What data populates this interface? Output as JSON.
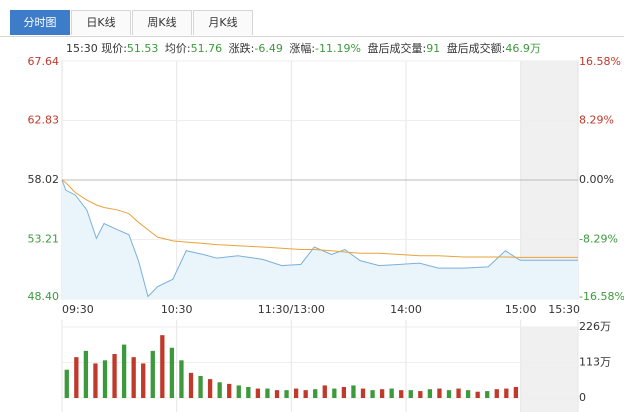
{
  "tabs": [
    "分时图",
    "日K线",
    "周K线",
    "月K线"
  ],
  "info": {
    "time": "15:30",
    "items": [
      {
        "label": "现价:",
        "value": "51.53"
      },
      {
        "label": "均价:",
        "value": "51.76"
      },
      {
        "label": "涨跌:",
        "value": "-6.49"
      },
      {
        "label": "涨幅:",
        "value": "-11.19%"
      },
      {
        "label": "盘后成交量:",
        "value": "91"
      },
      {
        "label": "盘后成交额:",
        "value": "46.9万"
      }
    ]
  },
  "chart_data": [
    {
      "type": "line",
      "x": [
        0,
        2,
        7,
        13,
        18,
        22,
        29,
        35,
        40,
        45,
        50,
        58,
        65,
        74,
        81,
        92,
        105,
        115,
        125,
        132,
        141,
        148,
        156,
        166,
        177,
        187,
        197,
        210,
        223,
        232,
        239,
        240,
        270
      ],
      "series": [
        {
          "color": "#7ab0dd",
          "values": [
            58.02,
            57.2,
            56.8,
            55.6,
            53.3,
            54.5,
            54.0,
            53.6,
            51.5,
            48.6,
            49.4,
            50.0,
            52.3,
            52.0,
            51.7,
            51.9,
            51.6,
            51.1,
            51.2,
            52.6,
            52.0,
            52.4,
            51.5,
            51.1,
            51.2,
            51.3,
            50.9,
            50.9,
            51.0,
            52.3,
            51.6,
            51.53,
            51.53
          ]
        },
        {
          "color": "#e8a33a",
          "values": [
            58.02,
            57.8,
            57.0,
            56.4,
            56.0,
            55.8,
            55.6,
            55.3,
            54.6,
            54.0,
            53.4,
            53.1,
            53.0,
            52.9,
            52.8,
            52.7,
            52.6,
            52.5,
            52.4,
            52.4,
            52.3,
            52.2,
            52.1,
            52.1,
            52.0,
            51.9,
            51.9,
            51.8,
            51.8,
            51.8,
            51.76,
            51.76,
            51.76
          ]
        }
      ],
      "xlim": [
        0,
        270
      ],
      "xticks": [
        {
          "value": 0,
          "label": "09:30"
        },
        {
          "value": 60,
          "label": "10:30"
        },
        {
          "value": 120,
          "label": "11:30/13:00"
        },
        {
          "value": 180,
          "label": "14:00"
        },
        {
          "value": 240,
          "label": "15:00"
        },
        {
          "value": 270,
          "label": "15:30"
        }
      ],
      "ylim": [
        48.4,
        67.64
      ],
      "yticks": [
        {
          "value": 48.4,
          "label": "48.40"
        },
        53.21,
        58.02,
        62.83,
        67.64
      ],
      "y2lim": [
        -16.58,
        16.58
      ],
      "y2ticks": [
        {
          "value": -16.58,
          "label": "-16.58%"
        },
        {
          "value": -8.29,
          "label": "-8.29%"
        },
        {
          "value": 0,
          "label": "0.00%"
        },
        {
          "value": 8.29,
          "label": "8.29%"
        },
        {
          "value": 16.58,
          "label": "16.58%"
        }
      ],
      "grid": true
    },
    {
      "type": "bar",
      "x": [
        2.5,
        7.5,
        12.5,
        17.5,
        22.5,
        27.5,
        32.5,
        37.5,
        42.5,
        47.5,
        52.5,
        57.5,
        62.5,
        67.5,
        72.5,
        77.5,
        82.5,
        87.5,
        92.5,
        97.5,
        102.5,
        107.5,
        112.5,
        117.5,
        122.5,
        127.5,
        132.5,
        137.5,
        142.5,
        147.5,
        152.5,
        157.5,
        162.5,
        167.5,
        172.5,
        177.5,
        182.5,
        187.5,
        192.5,
        197.5,
        202.5,
        207.5,
        212.5,
        217.5,
        222.5,
        227.5,
        232.5,
        237.5
      ],
      "values": [
        90,
        130,
        150,
        110,
        120,
        140,
        170,
        130,
        110,
        150,
        200,
        160,
        120,
        80,
        70,
        60,
        50,
        45,
        40,
        35,
        30,
        30,
        25,
        25,
        30,
        25,
        28,
        40,
        30,
        35,
        40,
        30,
        25,
        28,
        30,
        25,
        25,
        22,
        28,
        30,
        25,
        30,
        25,
        20,
        22,
        28,
        30,
        35
      ],
      "colors": [
        "#3c9a3c",
        "#c0392b",
        "#3c9a3c",
        "#c0392b",
        "#3c9a3c",
        "#c0392b",
        "#3c9a3c",
        "#c0392b",
        "#c0392b",
        "#3c9a3c",
        "#c0392b",
        "#3c9a3c",
        "#3c9a3c",
        "#c0392b",
        "#3c9a3c",
        "#c0392b",
        "#3c9a3c",
        "#c0392b",
        "#3c9a3c",
        "#3c9a3c",
        "#c0392b",
        "#3c9a3c",
        "#c0392b",
        "#3c9a3c",
        "#c0392b",
        "#c0392b",
        "#3c9a3c",
        "#c0392b",
        "#3c9a3c",
        "#c0392b",
        "#3c9a3c",
        "#c0392b",
        "#3c9a3c",
        "#c0392b",
        "#3c9a3c",
        "#c0392b",
        "#3c9a3c",
        "#c0392b",
        "#3c9a3c",
        "#c0392b",
        "#3c9a3c",
        "#c0392b",
        "#3c9a3c",
        "#c0392b",
        "#3c9a3c",
        "#c0392b",
        "#c0392b",
        "#c0392b"
      ],
      "xlim": [
        0,
        270
      ],
      "xticks": [
        {
          "value": 0,
          "label": "09:30"
        },
        {
          "value": 60,
          "label": "10:30"
        },
        {
          "value": 120,
          "label": "11:30/13:00"
        },
        {
          "value": 180,
          "label": "14:00"
        },
        {
          "value": 240,
          "label": "15:00"
        },
        {
          "value": 270,
          "label": "15:30"
        }
      ],
      "ylim": [
        0,
        226
      ],
      "yticks": [
        {
          "value": 0,
          "label": "0"
        },
        {
          "value": 113,
          "label": "113万"
        },
        {
          "value": 226,
          "label": "226万"
        }
      ],
      "grid": true
    }
  ]
}
